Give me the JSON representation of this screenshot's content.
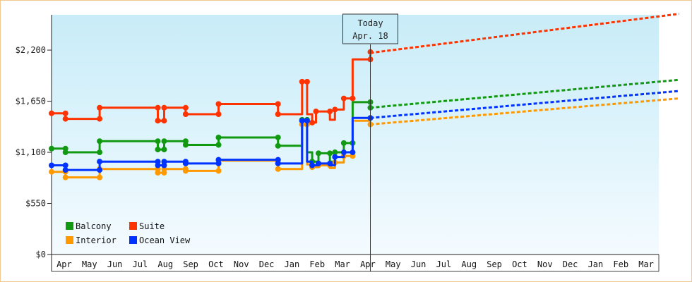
{
  "chart_data": {
    "type": "line",
    "title": "",
    "xlabel": "",
    "ylabel": "",
    "y_ticks": [
      "$0",
      "$550",
      "$1,100",
      "$1,650",
      "$2,200"
    ],
    "y_tick_values": [
      0,
      550,
      1100,
      1650,
      2200
    ],
    "ylim": [
      0,
      2580
    ],
    "x_months": [
      "Apr",
      "May",
      "Jun",
      "Jul",
      "Aug",
      "Sep",
      "Oct",
      "Nov",
      "Dec",
      "Jan",
      "Feb",
      "Mar",
      "Apr",
      "May",
      "Jun",
      "Jul",
      "Aug",
      "Sep",
      "Oct",
      "Nov",
      "Dec",
      "Jan",
      "Feb",
      "Mar"
    ],
    "x_unit": "month",
    "xlim": [
      0,
      24
    ],
    "today_marker": {
      "line1": "Today",
      "line2": "Apr. 18",
      "x": 12.6
    },
    "grid": {
      "vertical_month_lines": true,
      "horizontal_lines": false
    },
    "legend": {
      "placement": "bottom-left"
    },
    "series": [
      {
        "name": "Balcony",
        "color": "#119911",
        "points": [
          [
            0,
            1140
          ],
          [
            0.55,
            1140
          ],
          [
            0.55,
            1100
          ],
          [
            1.9,
            1100
          ],
          [
            1.9,
            1220
          ],
          [
            4.2,
            1220
          ],
          [
            4.2,
            1130
          ],
          [
            4.45,
            1130
          ],
          [
            4.45,
            1220
          ],
          [
            5.3,
            1220
          ],
          [
            5.3,
            1180
          ],
          [
            6.6,
            1180
          ],
          [
            6.6,
            1260
          ],
          [
            8.95,
            1260
          ],
          [
            8.95,
            1170
          ],
          [
            9.9,
            1170
          ],
          [
            9.9,
            1450
          ],
          [
            10.1,
            1450
          ],
          [
            10.1,
            1100
          ],
          [
            10.3,
            1100
          ],
          [
            10.3,
            1000
          ],
          [
            10.55,
            1000
          ],
          [
            10.55,
            1090
          ],
          [
            11.0,
            1090
          ],
          [
            11.0,
            1000
          ],
          [
            11.2,
            1000
          ],
          [
            11.2,
            1100
          ],
          [
            11.55,
            1100
          ],
          [
            11.55,
            1200
          ],
          [
            11.9,
            1200
          ],
          [
            11.9,
            1640
          ],
          [
            12.6,
            1640
          ]
        ],
        "markers": [
          [
            0,
            1140
          ],
          [
            0.55,
            1140
          ],
          [
            0.55,
            1100
          ],
          [
            1.9,
            1100
          ],
          [
            1.9,
            1220
          ],
          [
            4.2,
            1220
          ],
          [
            4.2,
            1130
          ],
          [
            4.45,
            1130
          ],
          [
            4.45,
            1220
          ],
          [
            5.3,
            1220
          ],
          [
            5.3,
            1180
          ],
          [
            6.6,
            1180
          ],
          [
            6.6,
            1260
          ],
          [
            8.95,
            1260
          ],
          [
            8.95,
            1170
          ],
          [
            9.9,
            1450
          ],
          [
            10.1,
            1450
          ],
          [
            10.3,
            1000
          ],
          [
            10.55,
            1090
          ],
          [
            11.0,
            1090
          ],
          [
            11.2,
            1100
          ],
          [
            11.55,
            1200
          ],
          [
            11.9,
            1200
          ],
          [
            12.6,
            1640
          ],
          [
            12.6,
            1580
          ]
        ],
        "projection": [
          [
            12.6,
            1580
          ],
          [
            24.8,
            1880
          ]
        ]
      },
      {
        "name": "Suite",
        "color": "#ff3300",
        "points": [
          [
            0,
            1520
          ],
          [
            0.55,
            1520
          ],
          [
            0.55,
            1460
          ],
          [
            1.9,
            1460
          ],
          [
            1.9,
            1580
          ],
          [
            4.2,
            1580
          ],
          [
            4.2,
            1440
          ],
          [
            4.45,
            1440
          ],
          [
            4.45,
            1580
          ],
          [
            5.3,
            1580
          ],
          [
            5.3,
            1510
          ],
          [
            6.6,
            1510
          ],
          [
            6.6,
            1620
          ],
          [
            8.95,
            1620
          ],
          [
            8.95,
            1510
          ],
          [
            9.9,
            1510
          ],
          [
            9.9,
            1860
          ],
          [
            10.1,
            1860
          ],
          [
            10.1,
            1510
          ],
          [
            10.3,
            1510
          ],
          [
            10.3,
            1420
          ],
          [
            10.45,
            1420
          ],
          [
            10.45,
            1540
          ],
          [
            11.0,
            1540
          ],
          [
            11.0,
            1450
          ],
          [
            11.2,
            1450
          ],
          [
            11.2,
            1560
          ],
          [
            11.55,
            1560
          ],
          [
            11.55,
            1680
          ],
          [
            11.9,
            1680
          ],
          [
            11.9,
            2100
          ],
          [
            12.6,
            2100
          ],
          [
            12.6,
            2150
          ]
        ],
        "markers": [
          [
            0,
            1520
          ],
          [
            0.55,
            1520
          ],
          [
            0.55,
            1460
          ],
          [
            1.9,
            1460
          ],
          [
            1.9,
            1580
          ],
          [
            4.2,
            1580
          ],
          [
            4.2,
            1440
          ],
          [
            4.45,
            1440
          ],
          [
            4.45,
            1580
          ],
          [
            5.3,
            1580
          ],
          [
            5.3,
            1510
          ],
          [
            6.6,
            1510
          ],
          [
            6.6,
            1620
          ],
          [
            8.95,
            1620
          ],
          [
            8.95,
            1510
          ],
          [
            9.9,
            1860
          ],
          [
            10.1,
            1860
          ],
          [
            10.3,
            1420
          ],
          [
            10.45,
            1540
          ],
          [
            11.0,
            1540
          ],
          [
            11.2,
            1560
          ],
          [
            11.55,
            1680
          ],
          [
            11.9,
            1680
          ],
          [
            12.6,
            2100
          ],
          [
            12.6,
            2180
          ]
        ],
        "projection": [
          [
            12.6,
            2170
          ],
          [
            24.8,
            2590
          ]
        ]
      },
      {
        "name": "Interior",
        "color": "#ff9900",
        "points": [
          [
            0,
            890
          ],
          [
            0.55,
            890
          ],
          [
            0.55,
            830
          ],
          [
            1.9,
            830
          ],
          [
            1.9,
            920
          ],
          [
            4.2,
            920
          ],
          [
            4.2,
            880
          ],
          [
            4.45,
            880
          ],
          [
            4.45,
            920
          ],
          [
            5.3,
            920
          ],
          [
            5.3,
            900
          ],
          [
            6.6,
            900
          ],
          [
            6.6,
            1010
          ],
          [
            8.95,
            1010
          ],
          [
            8.95,
            920
          ],
          [
            9.9,
            920
          ],
          [
            9.9,
            1400
          ],
          [
            10.1,
            1400
          ],
          [
            10.1,
            970
          ],
          [
            10.3,
            970
          ],
          [
            10.3,
            940
          ],
          [
            10.55,
            940
          ],
          [
            10.55,
            960
          ],
          [
            11.0,
            960
          ],
          [
            11.0,
            930
          ],
          [
            11.2,
            930
          ],
          [
            11.2,
            990
          ],
          [
            11.55,
            990
          ],
          [
            11.55,
            1060
          ],
          [
            11.9,
            1060
          ],
          [
            11.9,
            1440
          ],
          [
            12.6,
            1440
          ],
          [
            12.6,
            1400
          ]
        ],
        "markers": [
          [
            0,
            890
          ],
          [
            0.55,
            890
          ],
          [
            0.55,
            830
          ],
          [
            1.9,
            830
          ],
          [
            1.9,
            920
          ],
          [
            4.2,
            920
          ],
          [
            4.2,
            880
          ],
          [
            4.45,
            880
          ],
          [
            4.45,
            920
          ],
          [
            5.3,
            920
          ],
          [
            5.3,
            900
          ],
          [
            6.6,
            900
          ],
          [
            6.6,
            1010
          ],
          [
            8.95,
            1010
          ],
          [
            8.95,
            920
          ],
          [
            9.9,
            1400
          ],
          [
            10.1,
            1400
          ],
          [
            10.3,
            940
          ],
          [
            10.55,
            960
          ],
          [
            11.0,
            960
          ],
          [
            11.2,
            990
          ],
          [
            11.55,
            1060
          ],
          [
            11.9,
            1060
          ],
          [
            12.6,
            1400
          ]
        ],
        "projection": [
          [
            12.6,
            1400
          ],
          [
            24.8,
            1680
          ]
        ]
      },
      {
        "name": "Ocean View",
        "color": "#0033ff",
        "points": [
          [
            0,
            960
          ],
          [
            0.55,
            960
          ],
          [
            0.55,
            910
          ],
          [
            1.9,
            910
          ],
          [
            1.9,
            1000
          ],
          [
            4.2,
            1000
          ],
          [
            4.2,
            960
          ],
          [
            4.45,
            960
          ],
          [
            4.45,
            1000
          ],
          [
            5.3,
            1000
          ],
          [
            5.3,
            980
          ],
          [
            6.6,
            980
          ],
          [
            6.6,
            1020
          ],
          [
            8.95,
            1020
          ],
          [
            8.95,
            980
          ],
          [
            9.9,
            980
          ],
          [
            9.9,
            1440
          ],
          [
            10.1,
            1440
          ],
          [
            10.1,
            1000
          ],
          [
            10.3,
            1000
          ],
          [
            10.3,
            960
          ],
          [
            10.55,
            960
          ],
          [
            10.55,
            980
          ],
          [
            11.0,
            980
          ],
          [
            11.0,
            960
          ],
          [
            11.2,
            960
          ],
          [
            11.2,
            1050
          ],
          [
            11.55,
            1050
          ],
          [
            11.55,
            1100
          ],
          [
            11.9,
            1100
          ],
          [
            11.9,
            1470
          ],
          [
            12.6,
            1470
          ]
        ],
        "markers": [
          [
            0,
            960
          ],
          [
            0.55,
            960
          ],
          [
            0.55,
            910
          ],
          [
            1.9,
            910
          ],
          [
            1.9,
            1000
          ],
          [
            4.2,
            1000
          ],
          [
            4.2,
            960
          ],
          [
            4.45,
            960
          ],
          [
            4.45,
            1000
          ],
          [
            5.3,
            1000
          ],
          [
            5.3,
            980
          ],
          [
            6.6,
            980
          ],
          [
            6.6,
            1020
          ],
          [
            8.95,
            1020
          ],
          [
            8.95,
            980
          ],
          [
            9.9,
            1440
          ],
          [
            10.1,
            1440
          ],
          [
            10.3,
            960
          ],
          [
            10.55,
            980
          ],
          [
            11.0,
            980
          ],
          [
            11.2,
            1050
          ],
          [
            11.55,
            1100
          ],
          [
            11.9,
            1100
          ],
          [
            12.6,
            1470
          ]
        ],
        "projection": [
          [
            12.6,
            1470
          ],
          [
            24.8,
            1760
          ]
        ]
      }
    ]
  }
}
